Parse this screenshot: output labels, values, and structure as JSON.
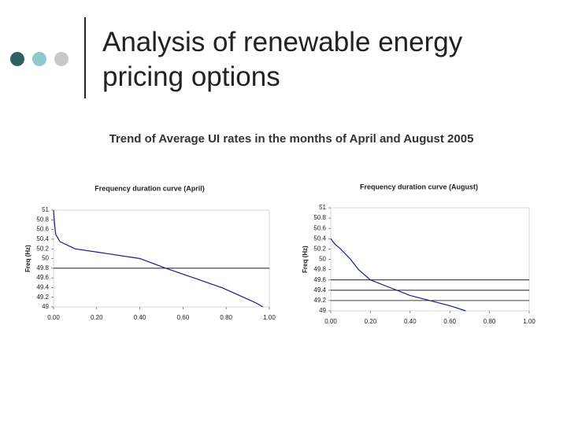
{
  "title_lines": [
    "Analysis of renewable energy",
    "pricing options"
  ],
  "subtitle": "Trend of Average UI rates in the months of April and August 2005",
  "chart_data": [
    {
      "type": "line",
      "title": "Frequency duration curve (April)",
      "y_label": "Freq (Hz)",
      "color": "#1a1a8c",
      "x": [
        0,
        0.005,
        0.01,
        0.03,
        0.1,
        0.25,
        0.4,
        0.52,
        0.65,
        0.78,
        0.88,
        0.94,
        0.97
      ],
      "values": [
        51,
        50.7,
        50.5,
        50.35,
        50.2,
        50.1,
        50,
        49.8,
        49.6,
        49.4,
        49.2,
        49.08,
        49
      ],
      "xlim": [
        0,
        1
      ],
      "ylim": [
        49,
        51
      ],
      "xticks": [
        {
          "value": 0,
          "label": "0.00"
        },
        {
          "value": 0.2,
          "label": "0.20"
        },
        {
          "value": 0.4,
          "label": "0.40"
        },
        {
          "value": 0.6,
          "label": "0.60"
        },
        {
          "value": 0.8,
          "label": "0.80"
        },
        {
          "value": 1,
          "label": "1.00"
        }
      ],
      "yticks": [
        51,
        50.8,
        50.6,
        50.4,
        50.2,
        50,
        49.8,
        49.6,
        49.4,
        49.2,
        49
      ],
      "hlines": [
        49.8
      ]
    },
    {
      "type": "line",
      "title": "Frequency duration curve (August)",
      "y_label": "Freq (Hz)",
      "color": "#1a1a8c",
      "x": [
        0,
        0.02,
        0.05,
        0.1,
        0.14,
        0.2,
        0.3,
        0.4,
        0.5,
        0.6,
        0.68
      ],
      "values": [
        50.4,
        50.3,
        50.2,
        50,
        49.8,
        49.6,
        49.45,
        49.3,
        49.2,
        49.1,
        49
      ],
      "xlim": [
        0,
        1
      ],
      "ylim": [
        49,
        51
      ],
      "xticks": [
        {
          "value": 0,
          "label": "0.00"
        },
        {
          "value": 0.2,
          "label": "0.20"
        },
        {
          "value": 0.4,
          "label": "0.40"
        },
        {
          "value": 0.6,
          "label": "0.60"
        },
        {
          "value": 0.8,
          "label": "0.80"
        },
        {
          "value": 1,
          "label": "1.00"
        }
      ],
      "yticks": [
        51,
        50.8,
        50.6,
        50.4,
        50.2,
        50,
        49.8,
        49.6,
        49.4,
        49.2,
        49
      ],
      "hlines": [
        49.6,
        49.4,
        49.2
      ]
    }
  ]
}
